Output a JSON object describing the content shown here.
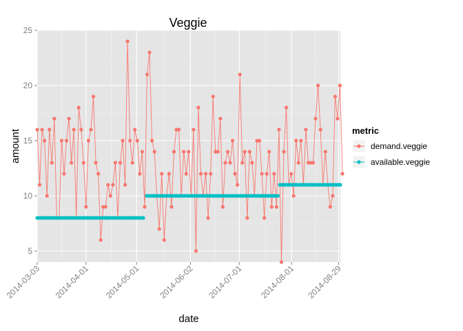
{
  "chart_data": {
    "type": "line",
    "title": "Veggie",
    "xlabel": "date",
    "ylabel": "amount",
    "ylim": [
      4,
      25
    ],
    "xlim": [
      "2014-03-03",
      "2014-08-30"
    ],
    "y_ticks": [
      5,
      10,
      15,
      20,
      25
    ],
    "x_ticks": [
      "2014-03-03",
      "2014-04-01",
      "2014-05-01",
      "2014-06-02",
      "2014-07-01",
      "2014-08-01",
      "2014-08-29"
    ],
    "grid": true,
    "legend": {
      "title": "metric",
      "position": "right",
      "entries": [
        {
          "name": "demand.veggie",
          "color": "#F8766D"
        },
        {
          "name": "available.veggie",
          "color": "#00BFC4"
        }
      ]
    },
    "series": [
      {
        "name": "demand.veggie",
        "color": "#F8766D",
        "start_date": "2014-03-03",
        "values": [
          16,
          11,
          16,
          15,
          10,
          16,
          13,
          17,
          8,
          8,
          15,
          12,
          15,
          17,
          13,
          16,
          8,
          18,
          16,
          13,
          9,
          15,
          16,
          19,
          13,
          12,
          6,
          9,
          9,
          11,
          10,
          11,
          13,
          8,
          13,
          15,
          11,
          24,
          15,
          13,
          16,
          15,
          12,
          14,
          9,
          21,
          23,
          15,
          14,
          10,
          7,
          12,
          6,
          10,
          12,
          9,
          14,
          16,
          16,
          10,
          14,
          12,
          14,
          10,
          16,
          5,
          18,
          12,
          10,
          12,
          8,
          12,
          19,
          14,
          14,
          17,
          9,
          13,
          14,
          13,
          15,
          12,
          11,
          21,
          13,
          14,
          8,
          14,
          13,
          10,
          15,
          15,
          12,
          8,
          12,
          14,
          9,
          12,
          9,
          16,
          4,
          14,
          18,
          11,
          12,
          10,
          15,
          13,
          15,
          11,
          16,
          13,
          13,
          13,
          17,
          20,
          16,
          11,
          14,
          11,
          9,
          10,
          19,
          17,
          20,
          12
        ]
      },
      {
        "name": "available.veggie",
        "color": "#00BFC4",
        "start_date": "2014-03-03",
        "segments": [
          {
            "from": "2014-03-03",
            "to": "2014-05-05",
            "value": 8
          },
          {
            "from": "2014-05-07",
            "to": "2014-07-24",
            "value": 10
          },
          {
            "from": "2014-07-25",
            "to": "2014-08-30",
            "value": 11
          }
        ]
      }
    ]
  }
}
